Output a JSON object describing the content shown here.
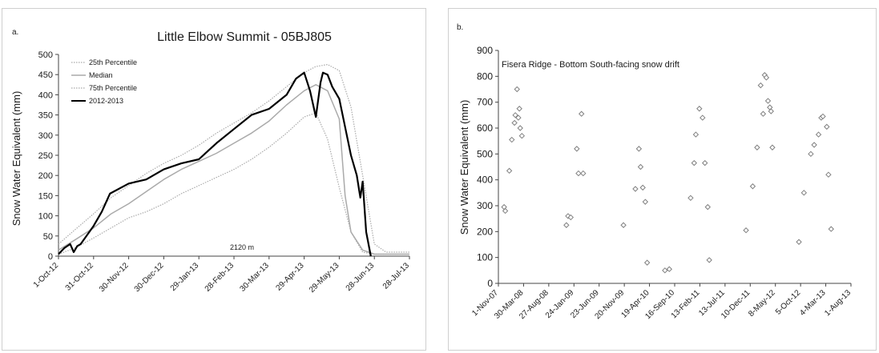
{
  "panels": [
    {
      "panel_label": "a.",
      "title": "Little Elbow Summit - 05BJ805",
      "annotation": "2120 m",
      "ylabel": "Snow Water Equivalent (mm)",
      "legend": [
        "25th Percentile",
        "Median",
        "75th Percentile",
        "2012-2013"
      ]
    },
    {
      "panel_label": "b.",
      "title": "Fisera Ridge - Bottom South-facing snow drift",
      "ylabel": "Snow Water Equivalent (mm)"
    }
  ],
  "chart_data": [
    {
      "type": "line",
      "title": "Little Elbow Summit - 05BJ805",
      "xlabel": "",
      "ylabel": "Snow Water Equivalent (mm)",
      "ylim": [
        0,
        500
      ],
      "yticks": [
        0,
        50,
        100,
        150,
        200,
        250,
        300,
        350,
        400,
        450,
        500
      ],
      "xlim": [
        "2012-10-01",
        "2013-07-28"
      ],
      "xtick_labels": [
        "1-Oct-12",
        "31-Oct-12",
        "30-Nov-12",
        "30-Dec-12",
        "29-Jan-13",
        "28-Feb-13",
        "30-Mar-13",
        "29-Apr-13",
        "29-May-13",
        "28-Jun-13",
        "28-Jul-13"
      ],
      "xticks": [
        "2012-10-01",
        "2012-10-31",
        "2012-11-30",
        "2012-12-30",
        "2013-01-29",
        "2013-02-28",
        "2013-03-30",
        "2013-04-29",
        "2013-05-29",
        "2013-06-28",
        "2013-07-28"
      ],
      "annotation": "2120 m",
      "legend_position": "top-left",
      "grid": false,
      "series": [
        {
          "name": "25th Percentile",
          "color": "#aaaaaa",
          "style": "dotted",
          "x": [
            "2012-10-01",
            "2012-10-15",
            "2012-10-31",
            "2012-11-15",
            "2012-11-30",
            "2012-12-15",
            "2012-12-30",
            "2013-01-14",
            "2013-01-29",
            "2013-02-13",
            "2013-02-28",
            "2013-03-15",
            "2013-03-30",
            "2013-04-14",
            "2013-04-29",
            "2013-05-09",
            "2013-05-19",
            "2013-05-29",
            "2013-06-08",
            "2013-06-18",
            "2013-06-28",
            "2013-07-08",
            "2013-07-28"
          ],
          "y": [
            5,
            20,
            45,
            70,
            95,
            110,
            130,
            155,
            175,
            195,
            215,
            240,
            270,
            305,
            345,
            355,
            290,
            170,
            60,
            10,
            5,
            5,
            5
          ]
        },
        {
          "name": "Median",
          "color": "#aaaaaa",
          "style": "solid",
          "x": [
            "2012-10-01",
            "2012-10-15",
            "2012-10-31",
            "2012-11-15",
            "2012-11-30",
            "2012-12-15",
            "2012-12-30",
            "2013-01-14",
            "2013-01-29",
            "2013-02-13",
            "2013-02-28",
            "2013-03-15",
            "2013-03-30",
            "2013-04-14",
            "2013-04-29",
            "2013-05-09",
            "2013-05-19",
            "2013-05-29",
            "2013-06-03",
            "2013-06-08",
            "2013-06-18",
            "2013-06-28",
            "2013-07-08",
            "2013-07-28"
          ],
          "y": [
            15,
            40,
            70,
            105,
            130,
            160,
            190,
            215,
            235,
            255,
            280,
            305,
            335,
            375,
            410,
            425,
            410,
            340,
            150,
            60,
            15,
            5,
            5,
            5
          ]
        },
        {
          "name": "75th Percentile",
          "color": "#aaaaaa",
          "style": "dotted",
          "x": [
            "2012-10-01",
            "2012-10-15",
            "2012-10-31",
            "2012-11-15",
            "2012-11-30",
            "2012-12-15",
            "2012-12-30",
            "2013-01-14",
            "2013-01-29",
            "2013-02-13",
            "2013-02-28",
            "2013-03-15",
            "2013-03-30",
            "2013-04-14",
            "2013-04-29",
            "2013-05-09",
            "2013-05-19",
            "2013-05-29",
            "2013-06-08",
            "2013-06-18",
            "2013-06-28",
            "2013-07-08",
            "2013-07-28"
          ],
          "y": [
            30,
            65,
            105,
            145,
            175,
            205,
            230,
            250,
            275,
            305,
            330,
            355,
            385,
            420,
            455,
            470,
            475,
            460,
            370,
            200,
            30,
            10,
            10
          ]
        },
        {
          "name": "2012-2013",
          "color": "#000000",
          "style": "solid-bold",
          "x": [
            "2012-10-01",
            "2012-10-06",
            "2012-10-11",
            "2012-10-14",
            "2012-10-17",
            "2012-10-20",
            "2012-10-31",
            "2012-11-07",
            "2012-11-14",
            "2012-11-30",
            "2012-12-15",
            "2012-12-30",
            "2013-01-14",
            "2013-01-29",
            "2013-02-13",
            "2013-02-28",
            "2013-03-15",
            "2013-03-30",
            "2013-04-14",
            "2013-04-22",
            "2013-04-29",
            "2013-05-04",
            "2013-05-09",
            "2013-05-13",
            "2013-05-15",
            "2013-05-19",
            "2013-05-23",
            "2013-05-29",
            "2013-06-03",
            "2013-06-08",
            "2013-06-13",
            "2013-06-16",
            "2013-06-18",
            "2013-06-21",
            "2013-06-25"
          ],
          "y": [
            5,
            20,
            30,
            10,
            25,
            30,
            75,
            110,
            155,
            180,
            190,
            215,
            230,
            240,
            280,
            315,
            350,
            365,
            400,
            440,
            455,
            410,
            345,
            430,
            455,
            450,
            420,
            390,
            320,
            250,
            200,
            145,
            185,
            60,
            0
          ]
        }
      ]
    },
    {
      "type": "scatter",
      "title": "Fisera Ridge - Bottom South-facing snow drift",
      "xlabel": "",
      "ylabel": "Snow Water Equivalent (mm)",
      "ylim": [
        0,
        900
      ],
      "yticks": [
        0,
        100,
        200,
        300,
        400,
        500,
        600,
        700,
        800,
        900
      ],
      "xlim": [
        "2007-11-01",
        "2013-08-01"
      ],
      "xtick_labels": [
        "1-Nov-07",
        "30-Mar-08",
        "27-Aug-08",
        "24-Jan-09",
        "23-Jun-09",
        "20-Nov-09",
        "19-Apr-10",
        "16-Sep-10",
        "13-Feb-11",
        "13-Jul-11",
        "10-Dec-11",
        "8-May-12",
        "5-Oct-12",
        "4-Mar-13",
        "1-Aug-13"
      ],
      "xticks": [
        "2007-11-01",
        "2008-03-30",
        "2008-08-27",
        "2009-01-24",
        "2009-06-23",
        "2009-11-20",
        "2010-04-19",
        "2010-09-16",
        "2011-02-13",
        "2011-07-13",
        "2011-12-10",
        "2012-05-08",
        "2012-10-05",
        "2013-03-04",
        "2013-08-01"
      ],
      "grid": false,
      "marker": "diamond",
      "marker_color": "#808080",
      "x": [
        "2007-12-05",
        "2007-12-12",
        "2008-01-05",
        "2008-01-20",
        "2008-02-05",
        "2008-02-10",
        "2008-02-20",
        "2008-02-28",
        "2008-03-05",
        "2008-03-10",
        "2008-03-20",
        "2008-12-10",
        "2008-12-20",
        "2009-01-05",
        "2009-02-10",
        "2009-02-20",
        "2009-03-10",
        "2009-03-20",
        "2009-11-15",
        "2010-01-25",
        "2010-02-15",
        "2010-02-25",
        "2010-03-10",
        "2010-03-25",
        "2010-04-05",
        "2010-07-20",
        "2010-08-15",
        "2010-12-20",
        "2011-01-10",
        "2011-01-20",
        "2011-02-10",
        "2011-03-01",
        "2011-03-15",
        "2011-04-01",
        "2011-04-10",
        "2011-11-15",
        "2011-12-25",
        "2012-01-20",
        "2012-02-10",
        "2012-02-25",
        "2012-03-05",
        "2012-03-15",
        "2012-03-25",
        "2012-04-05",
        "2012-04-12",
        "2012-04-20",
        "2012-09-25",
        "2012-10-25",
        "2012-12-05",
        "2012-12-25",
        "2013-01-20",
        "2013-02-05",
        "2013-02-15",
        "2013-03-10",
        "2013-03-20",
        "2013-04-05"
      ],
      "y": [
        295,
        280,
        435,
        555,
        620,
        650,
        750,
        640,
        675,
        600,
        570,
        225,
        260,
        255,
        520,
        425,
        655,
        425,
        225,
        365,
        520,
        450,
        370,
        315,
        80,
        50,
        55,
        330,
        465,
        575,
        675,
        640,
        465,
        295,
        90,
        205,
        375,
        525,
        765,
        655,
        805,
        795,
        705,
        680,
        665,
        525,
        160,
        350,
        500,
        535,
        575,
        640,
        645,
        605,
        420,
        210
      ]
    }
  ]
}
